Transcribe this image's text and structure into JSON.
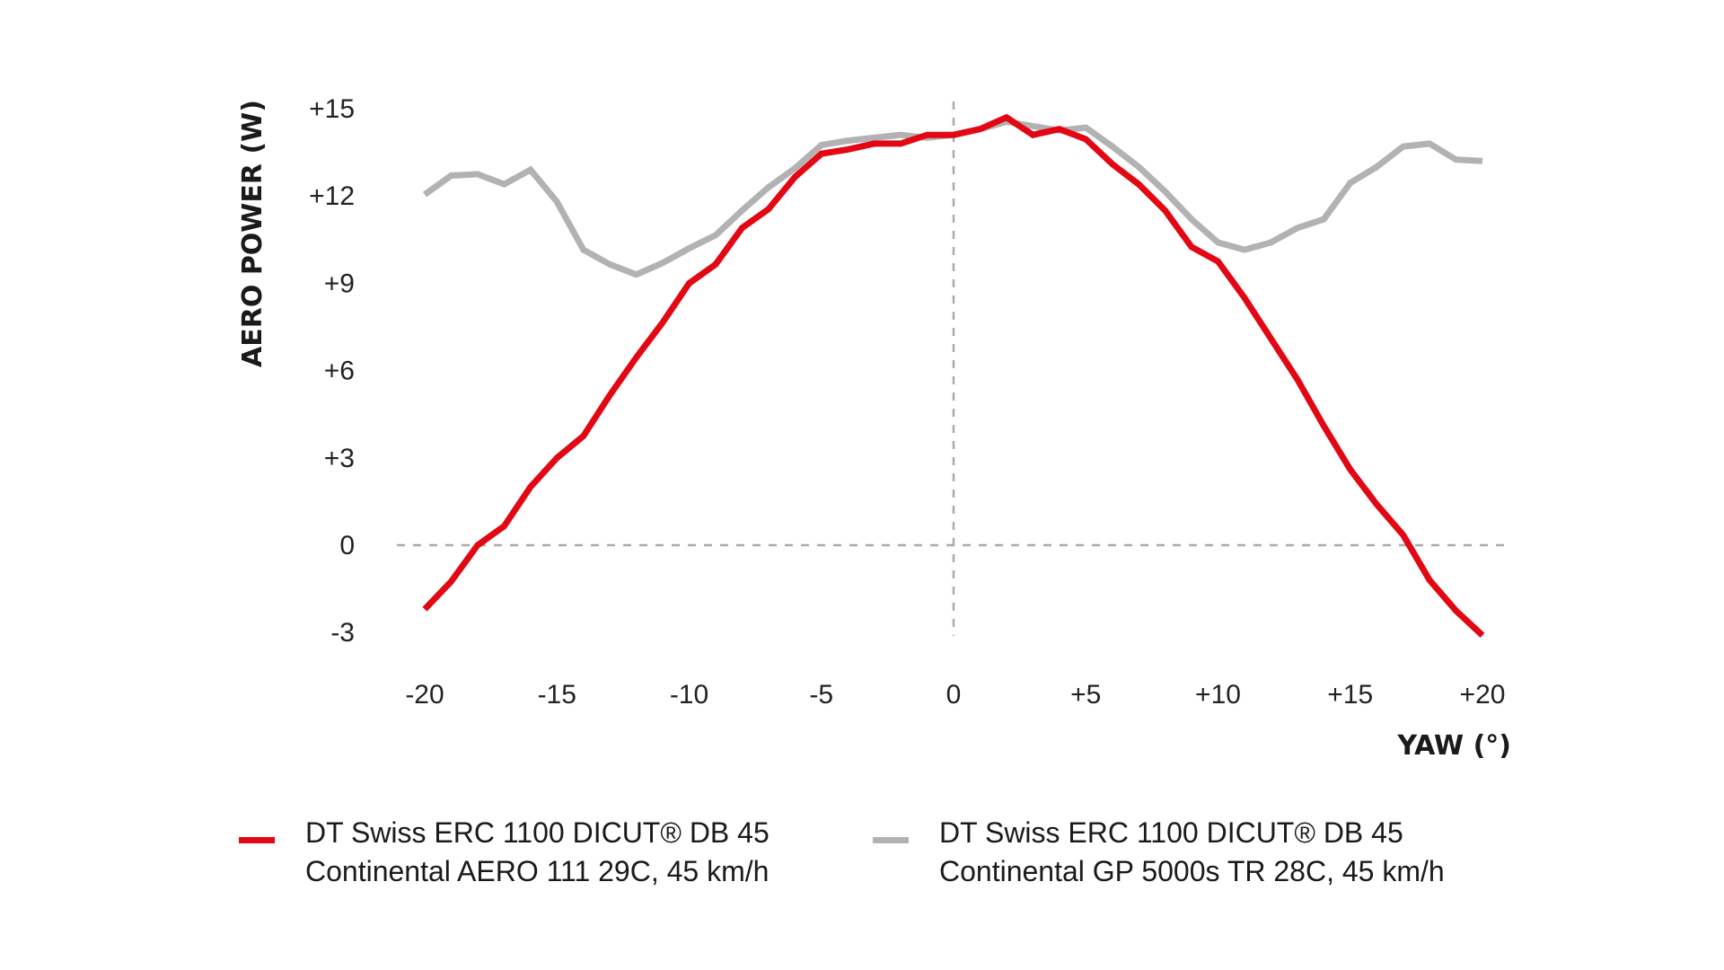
{
  "chart_data": {
    "type": "line",
    "title": "",
    "xlabel": "YAW (°)",
    "ylabel": "AERO POWER (W)",
    "xlim": [
      -20,
      20
    ],
    "ylim": [
      -3,
      15
    ],
    "x_ticks": [
      -20,
      -15,
      -10,
      -5,
      0,
      5,
      10,
      15,
      20
    ],
    "x_tick_labels": [
      "-20",
      "-15",
      "-10",
      "-5",
      "0",
      "+5",
      "+10",
      "+15",
      "+20"
    ],
    "y_ticks": [
      15,
      12,
      9,
      6,
      3,
      0,
      -3
    ],
    "y_tick_labels": [
      "+15",
      "+12",
      "+9",
      "+6",
      "+3",
      "0",
      "-3"
    ],
    "reference_lines": [
      {
        "axis": "y",
        "value": 0,
        "style": "dashed"
      },
      {
        "axis": "x",
        "value": 0,
        "style": "dashed"
      }
    ],
    "grid": false,
    "legend_position": "bottom",
    "x": [
      -20,
      -19,
      -18,
      -17,
      -16,
      -15,
      -14,
      -13,
      -12,
      -11,
      -10,
      -9,
      -8,
      -7,
      -6,
      -5,
      -4,
      -3,
      -2,
      -1,
      0,
      1,
      2,
      3,
      4,
      5,
      6,
      7,
      8,
      9,
      10,
      11,
      12,
      13,
      14,
      15,
      16,
      17,
      18,
      19,
      20
    ],
    "series": [
      {
        "name": "DT Swiss ERC 1100 DICUT® DB 45 Continental AERO 111 29C, 45 km/h",
        "legend_line1": "DT Swiss ERC 1100 DICUT® DB 45",
        "legend_line2": "Continental AERO 111 29C, 45 km/h",
        "color": "#e30613",
        "values": [
          -2.2,
          -1.25,
          0.0,
          0.65,
          2.0,
          3.0,
          3.75,
          5.15,
          6.45,
          7.65,
          9.0,
          9.65,
          10.9,
          11.55,
          12.65,
          13.45,
          13.6,
          13.8,
          13.8,
          14.1,
          14.1,
          14.3,
          14.7,
          14.1,
          14.3,
          13.95,
          13.1,
          12.4,
          11.5,
          10.25,
          9.75,
          8.5,
          7.1,
          5.7,
          4.1,
          2.6,
          1.4,
          0.35,
          -1.2,
          -2.25,
          -3.1
        ]
      },
      {
        "name": "DT Swiss ERC 1100 DICUT® DB 45 Continental GP 5000s TR 28C, 45 km/h",
        "legend_line1": "DT Swiss ERC 1100 DICUT® DB 45",
        "legend_line2": "Continental GP 5000s TR 28C, 45 km/h",
        "color": "#b2b2b2",
        "values": [
          12.05,
          12.7,
          12.75,
          12.4,
          12.9,
          11.8,
          10.15,
          9.65,
          9.3,
          9.7,
          10.2,
          10.65,
          11.5,
          12.3,
          12.95,
          13.75,
          13.9,
          14.0,
          14.1,
          14.0,
          14.1,
          14.3,
          14.55,
          14.4,
          14.25,
          14.35,
          13.7,
          13.0,
          12.15,
          11.2,
          10.4,
          10.15,
          10.4,
          10.9,
          11.2,
          12.45,
          13.0,
          13.7,
          13.8,
          13.25,
          13.2
        ]
      }
    ]
  }
}
